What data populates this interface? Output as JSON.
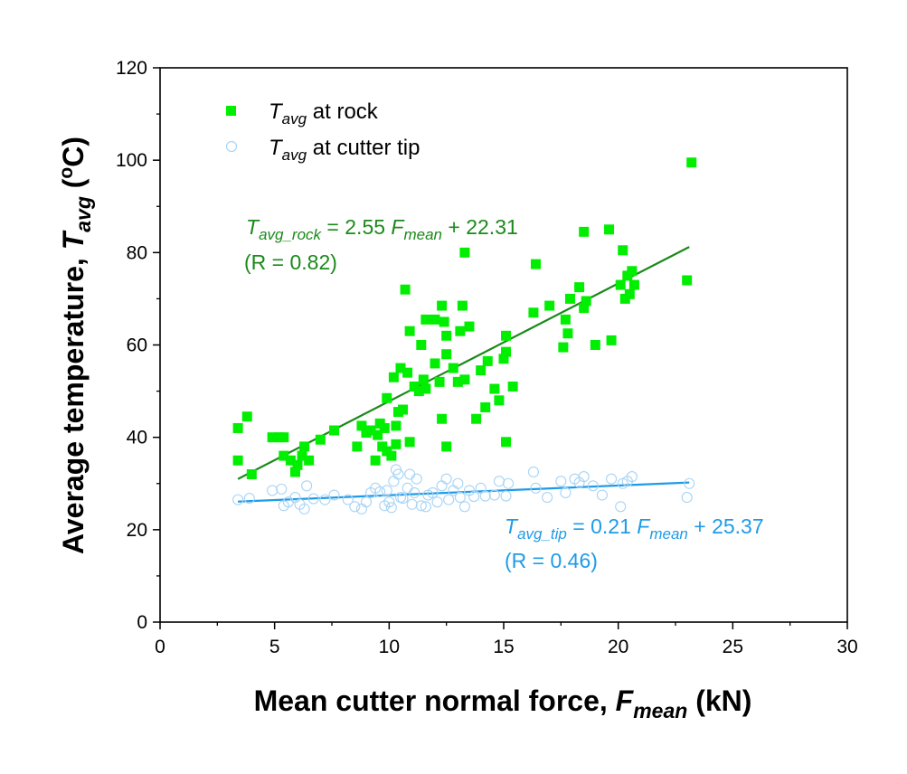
{
  "chart_data": {
    "type": "scatter",
    "xlabel_prefix": "Mean cutter normal force, ",
    "xlabel_var": "F",
    "xlabel_sub": "mean",
    "xlabel_suffix": " (kN)",
    "ylabel_prefix": "Average temperature, ",
    "ylabel_var": "T",
    "ylabel_sub": "avg",
    "ylabel_unit_open": " (",
    "ylabel_unit_sup": "o",
    "ylabel_unit_close": "C)",
    "xlim": [
      0,
      30
    ],
    "ylim": [
      0,
      120
    ],
    "xticks": [
      "0",
      "5",
      "10",
      "15",
      "20",
      "25",
      "30"
    ],
    "yticks": [
      "0",
      "20",
      "40",
      "60",
      "80",
      "100",
      "120"
    ],
    "colors": {
      "rock": "#00ee00",
      "rock_fit": "#1a8a1a",
      "tip": "#1e9be8",
      "tip_marker": "#a8d4f5"
    },
    "series": [
      {
        "name": "T_avg at rock",
        "legend_var": "T",
        "legend_sub": "avg",
        "legend_rest": " at rock",
        "marker": "square",
        "points": [
          [
            3.4,
            35
          ],
          [
            3.4,
            42
          ],
          [
            3.8,
            44.5
          ],
          [
            4.0,
            32
          ],
          [
            4.9,
            40
          ],
          [
            5.2,
            40
          ],
          [
            5.4,
            36
          ],
          [
            5.4,
            40
          ],
          [
            5.7,
            35
          ],
          [
            5.9,
            32.5
          ],
          [
            6.0,
            34
          ],
          [
            6.2,
            36
          ],
          [
            6.3,
            38
          ],
          [
            6.5,
            35
          ],
          [
            7.0,
            39.5
          ],
          [
            7.6,
            41.5
          ],
          [
            8.6,
            38
          ],
          [
            8.8,
            42.5
          ],
          [
            9.0,
            41
          ],
          [
            9.2,
            41.5
          ],
          [
            9.4,
            35
          ],
          [
            9.5,
            40.5
          ],
          [
            9.6,
            43
          ],
          [
            9.7,
            38
          ],
          [
            9.8,
            42
          ],
          [
            9.9,
            37
          ],
          [
            9.9,
            48.5
          ],
          [
            10.1,
            36
          ],
          [
            10.3,
            42.5
          ],
          [
            10.2,
            53
          ],
          [
            10.3,
            38.5
          ],
          [
            10.4,
            45.5
          ],
          [
            10.5,
            55
          ],
          [
            10.6,
            46
          ],
          [
            10.7,
            72
          ],
          [
            10.8,
            54
          ],
          [
            10.9,
            63
          ],
          [
            10.9,
            39
          ],
          [
            11.1,
            51
          ],
          [
            11.3,
            50
          ],
          [
            11.4,
            60
          ],
          [
            11.5,
            52.5
          ],
          [
            11.6,
            50.5
          ],
          [
            11.6,
            65.5
          ],
          [
            12.0,
            56
          ],
          [
            12.0,
            65.5
          ],
          [
            12.2,
            52
          ],
          [
            12.3,
            68.5
          ],
          [
            12.3,
            44
          ],
          [
            12.4,
            65
          ],
          [
            12.5,
            58
          ],
          [
            12.5,
            62
          ],
          [
            12.5,
            38
          ],
          [
            12.8,
            55
          ],
          [
            13.0,
            52
          ],
          [
            13.1,
            63
          ],
          [
            13.2,
            68.5
          ],
          [
            13.3,
            52.5
          ],
          [
            13.3,
            80
          ],
          [
            13.5,
            64
          ],
          [
            13.8,
            44
          ],
          [
            14.0,
            54.5
          ],
          [
            14.2,
            46.5
          ],
          [
            14.3,
            56.5
          ],
          [
            14.6,
            50.5
          ],
          [
            14.8,
            48
          ],
          [
            15.0,
            57
          ],
          [
            15.1,
            58.5
          ],
          [
            15.1,
            62
          ],
          [
            15.1,
            39
          ],
          [
            15.4,
            51
          ],
          [
            16.3,
            67
          ],
          [
            16.4,
            77.5
          ],
          [
            17.0,
            68.5
          ],
          [
            17.6,
            59.5
          ],
          [
            17.7,
            65.5
          ],
          [
            17.8,
            62.5
          ],
          [
            17.9,
            70
          ],
          [
            18.3,
            72.5
          ],
          [
            18.5,
            68
          ],
          [
            18.5,
            84.5
          ],
          [
            18.6,
            69.5
          ],
          [
            19.0,
            60
          ],
          [
            19.6,
            85
          ],
          [
            19.7,
            61
          ],
          [
            20.1,
            73
          ],
          [
            20.2,
            80.5
          ],
          [
            20.3,
            70
          ],
          [
            20.4,
            75
          ],
          [
            20.5,
            71
          ],
          [
            20.6,
            76
          ],
          [
            20.7,
            73
          ],
          [
            23.0,
            74
          ],
          [
            23.2,
            99.5
          ]
        ]
      },
      {
        "name": "T_avg at cutter tip",
        "legend_var": "T",
        "legend_sub": "avg",
        "legend_rest": " at cutter tip",
        "marker": "circle",
        "points": [
          [
            3.4,
            26.5
          ],
          [
            3.9,
            26.8
          ],
          [
            4.9,
            28.5
          ],
          [
            5.3,
            28.8
          ],
          [
            5.4,
            25.2
          ],
          [
            5.6,
            26
          ],
          [
            5.9,
            27
          ],
          [
            6.1,
            25.5
          ],
          [
            6.3,
            24.5
          ],
          [
            6.4,
            29.5
          ],
          [
            6.7,
            26.7
          ],
          [
            7.2,
            26.5
          ],
          [
            7.6,
            27.5
          ],
          [
            8.2,
            26.5
          ],
          [
            8.5,
            25
          ],
          [
            8.8,
            24.5
          ],
          [
            9.0,
            26
          ],
          [
            9.2,
            28
          ],
          [
            9.4,
            29
          ],
          [
            9.6,
            28.2
          ],
          [
            9.8,
            25.2
          ],
          [
            9.9,
            28.5
          ],
          [
            10.0,
            26
          ],
          [
            10.1,
            24.8
          ],
          [
            10.2,
            30.5
          ],
          [
            10.3,
            33
          ],
          [
            10.4,
            32
          ],
          [
            10.5,
            27
          ],
          [
            10.6,
            26.8
          ],
          [
            10.8,
            29
          ],
          [
            10.9,
            32
          ],
          [
            11.0,
            25.5
          ],
          [
            11.1,
            28
          ],
          [
            11.2,
            31
          ],
          [
            11.4,
            25.2
          ],
          [
            11.6,
            25
          ],
          [
            11.7,
            27.5
          ],
          [
            11.9,
            28
          ],
          [
            12.1,
            26
          ],
          [
            12.3,
            29.5
          ],
          [
            12.5,
            31
          ],
          [
            12.6,
            26.5
          ],
          [
            12.8,
            28.5
          ],
          [
            13.0,
            30
          ],
          [
            13.1,
            27
          ],
          [
            13.3,
            25
          ],
          [
            13.5,
            28.5
          ],
          [
            13.7,
            27.2
          ],
          [
            14.0,
            29
          ],
          [
            14.2,
            27.3
          ],
          [
            14.6,
            27.5
          ],
          [
            14.8,
            30.5
          ],
          [
            15.1,
            27.3
          ],
          [
            15.2,
            30
          ],
          [
            16.3,
            32.5
          ],
          [
            16.4,
            29
          ],
          [
            16.9,
            27
          ],
          [
            17.5,
            30.5
          ],
          [
            17.7,
            28
          ],
          [
            18.1,
            31
          ],
          [
            18.3,
            30.2
          ],
          [
            18.5,
            31.5
          ],
          [
            18.9,
            29.5
          ],
          [
            19.3,
            27.5
          ],
          [
            19.7,
            31
          ],
          [
            20.1,
            25
          ],
          [
            20.2,
            30
          ],
          [
            20.4,
            30.5
          ],
          [
            20.6,
            31.5
          ],
          [
            23.0,
            27
          ],
          [
            23.1,
            30
          ]
        ]
      }
    ],
    "fits": [
      {
        "series": "rock",
        "slope": 2.55,
        "intercept": 22.31,
        "x_range": [
          3.4,
          23.1
        ],
        "eq_var": "T",
        "eq_sub": "avg_rock",
        "eq_mid": " = 2.55 ",
        "eq_fvar": "F",
        "eq_fsub": "mean",
        "eq_end": " + 22.31",
        "r_text": "(R = 0.82)"
      },
      {
        "series": "tip",
        "slope": 0.21,
        "intercept": 25.37,
        "x_range": [
          3.4,
          23.1
        ],
        "eq_var": "T",
        "eq_sub": "avg_tip",
        "eq_mid": " = 0.21 ",
        "eq_fvar": "F",
        "eq_fsub": "mean",
        "eq_end": " + 25.37",
        "r_text": "(R = 0.46)"
      }
    ]
  }
}
